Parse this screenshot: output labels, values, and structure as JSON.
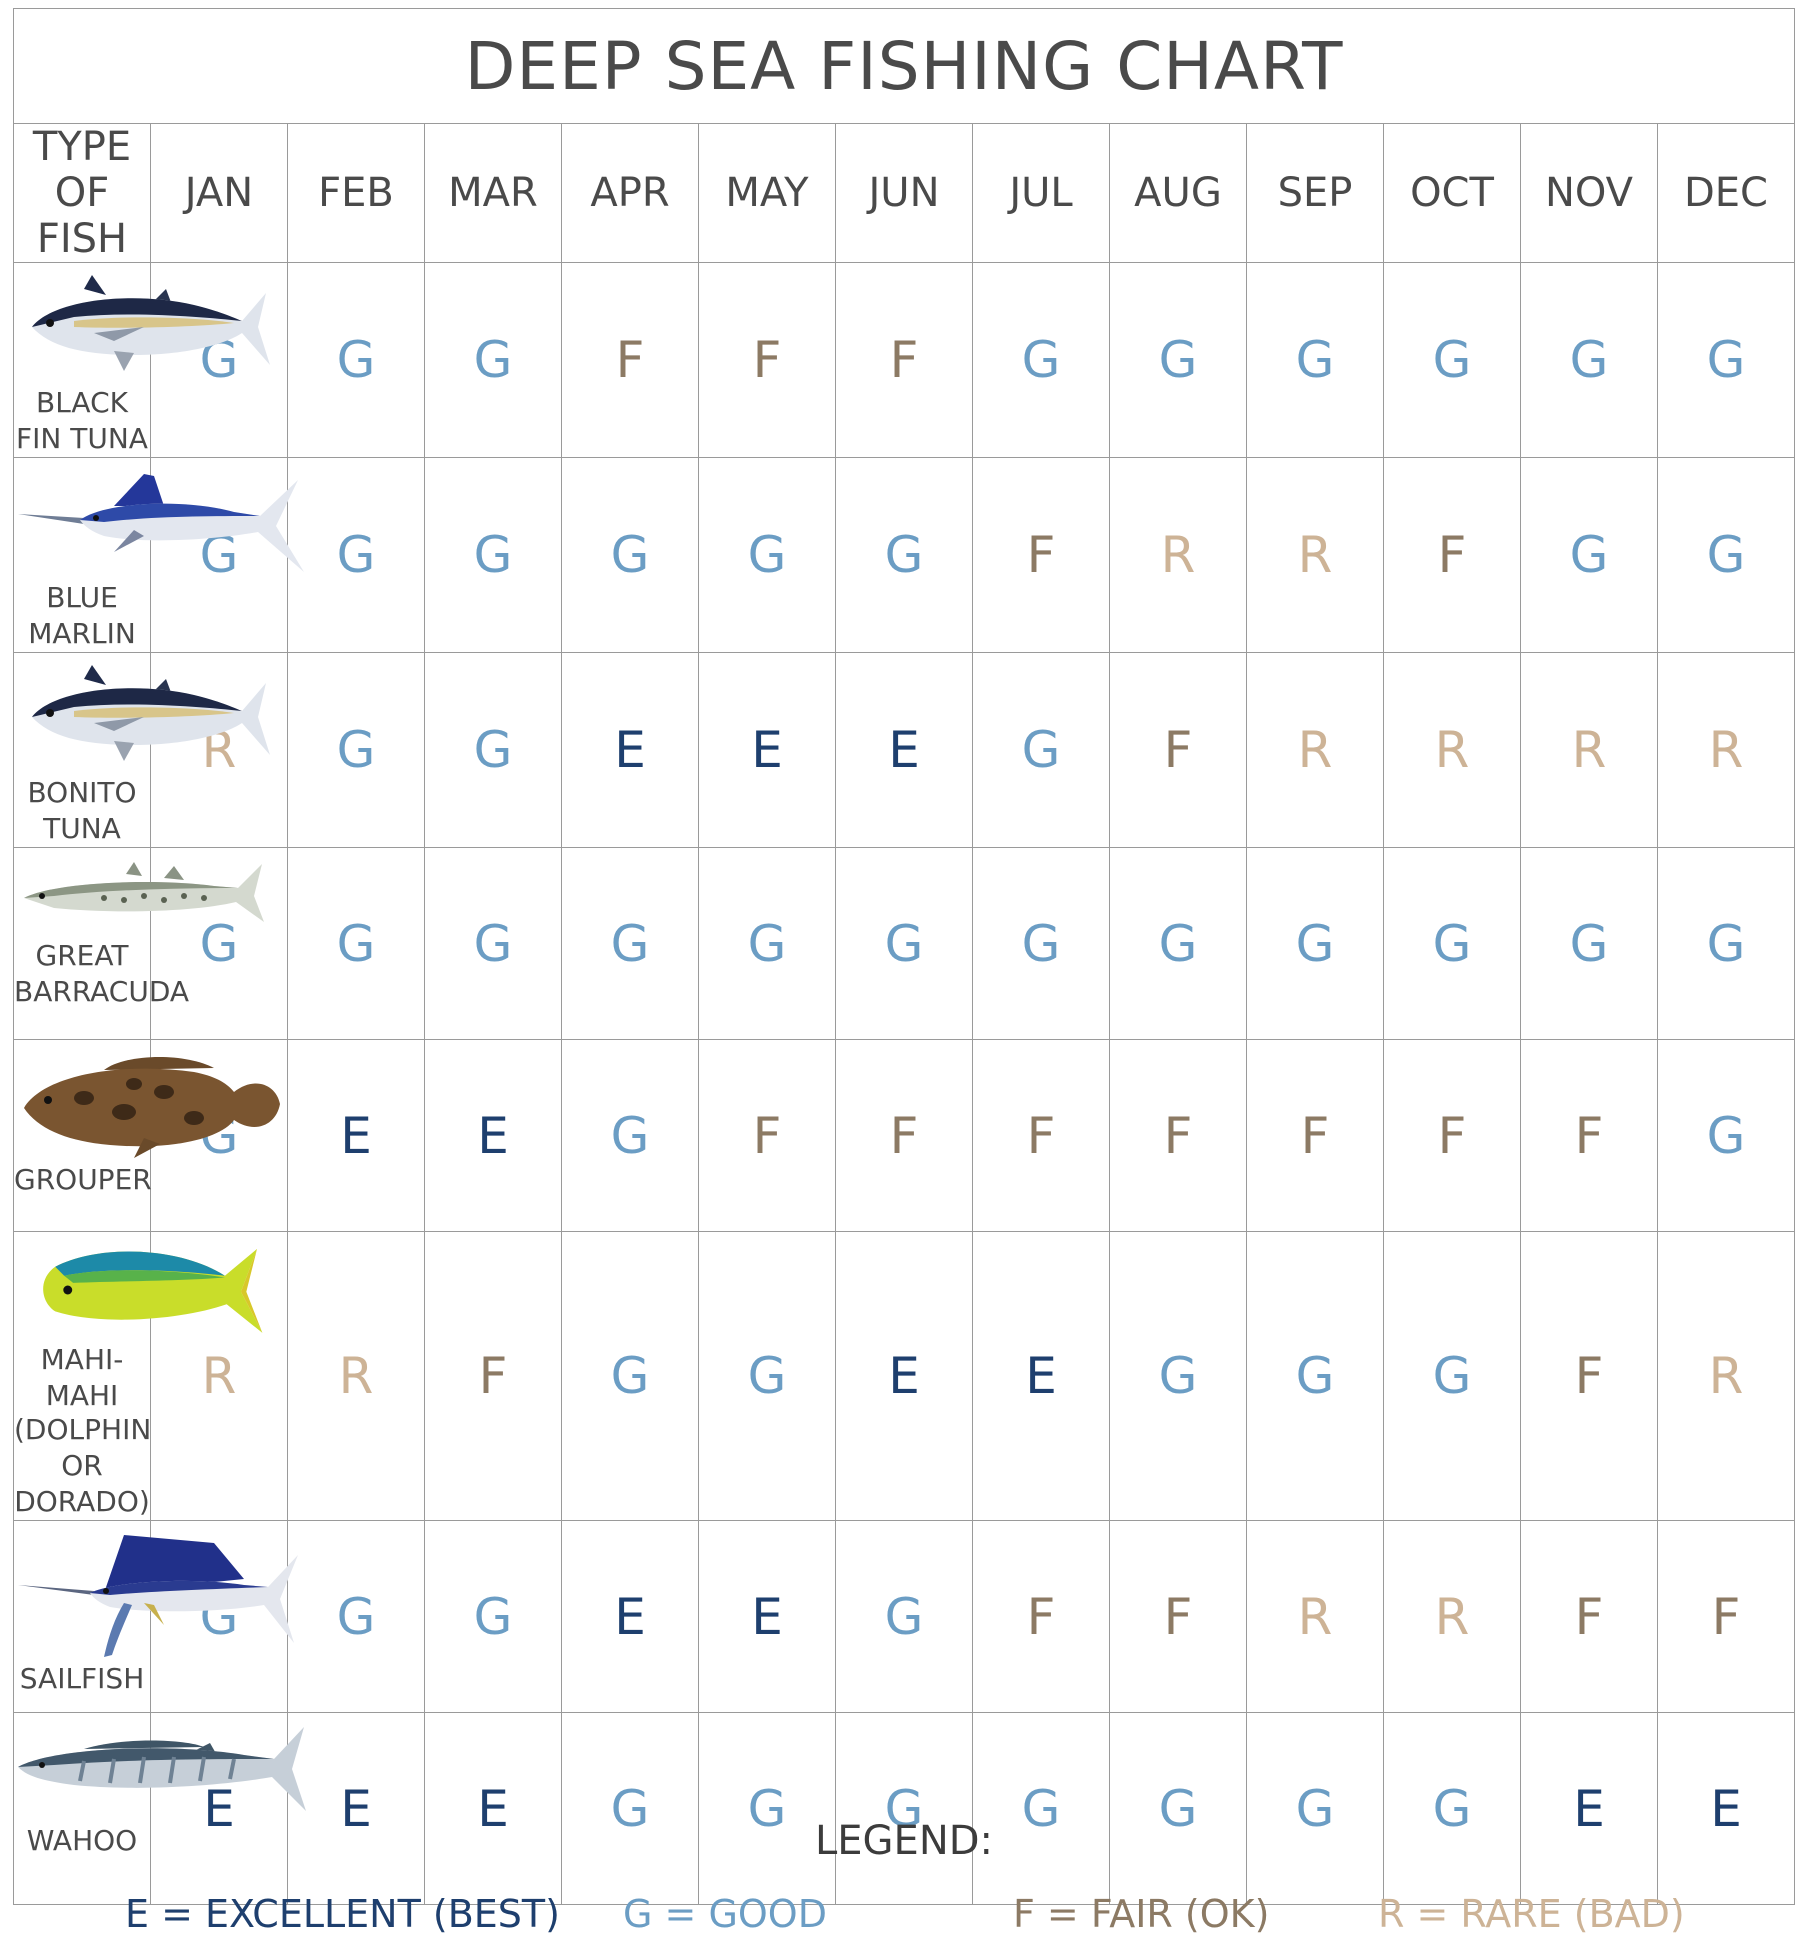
{
  "chart_data": {
    "type": "table",
    "title": "DEEP SEA FISHING CHART",
    "column_header": "TYPE OF FISH",
    "months": [
      "JAN",
      "FEB",
      "MAR",
      "APR",
      "MAY",
      "JUN",
      "JUL",
      "AUG",
      "SEP",
      "OCT",
      "NOV",
      "DEC"
    ],
    "rows": [
      {
        "fish": "BLACK FIN TUNA",
        "icon": "black-fin-tuna-icon",
        "values": [
          "G",
          "G",
          "G",
          "F",
          "F",
          "F",
          "G",
          "G",
          "G",
          "G",
          "G",
          "G"
        ]
      },
      {
        "fish": "BLUE MARLIN",
        "icon": "blue-marlin-icon",
        "values": [
          "G",
          "G",
          "G",
          "G",
          "G",
          "G",
          "F",
          "R",
          "R",
          "F",
          "G",
          "G"
        ]
      },
      {
        "fish": "BONITO TUNA",
        "icon": "bonito-tuna-icon",
        "values": [
          "R",
          "G",
          "G",
          "E",
          "E",
          "E",
          "G",
          "F",
          "R",
          "R",
          "R",
          "R"
        ]
      },
      {
        "fish": "GREAT BARRACUDA",
        "icon": "great-barracuda-icon",
        "values": [
          "G",
          "G",
          "G",
          "G",
          "G",
          "G",
          "G",
          "G",
          "G",
          "G",
          "G",
          "G"
        ]
      },
      {
        "fish": "GROUPER",
        "icon": "grouper-icon",
        "values": [
          "G",
          "E",
          "E",
          "G",
          "F",
          "F",
          "F",
          "F",
          "F",
          "F",
          "F",
          "G"
        ]
      },
      {
        "fish": "MAHI-MAHI",
        "fish_line2": "(DOLPHIN OR DORADO)",
        "icon": "mahi-mahi-icon",
        "values": [
          "R",
          "R",
          "F",
          "G",
          "G",
          "E",
          "E",
          "G",
          "G",
          "G",
          "F",
          "R"
        ]
      },
      {
        "fish": "SAILFISH",
        "icon": "sailfish-icon",
        "values": [
          "G",
          "G",
          "G",
          "E",
          "E",
          "G",
          "F",
          "F",
          "R",
          "R",
          "F",
          "F"
        ]
      },
      {
        "fish": "WAHOO",
        "icon": "wahoo-icon",
        "values": [
          "E",
          "E",
          "E",
          "G",
          "G",
          "G",
          "G",
          "G",
          "G",
          "G",
          "E",
          "E"
        ]
      }
    ],
    "legend_title": "LEGEND:",
    "legend": [
      {
        "code": "E",
        "label": "E = EXCELLENT (BEST)",
        "color": "#1e3f6e"
      },
      {
        "code": "G",
        "label": "G = GOOD",
        "color": "#6b9dc4"
      },
      {
        "code": "F",
        "label": "F = FAIR (OK)",
        "color": "#8c7a64"
      },
      {
        "code": "R",
        "label": "R = RARE (BAD)",
        "color": "#cdb396"
      }
    ]
  }
}
